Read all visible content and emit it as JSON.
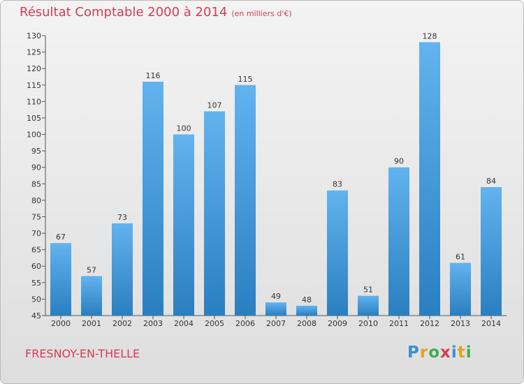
{
  "header": {
    "title": "Résultat Comptable 2000 à 2014",
    "subtitle": "(en milliers d'€)"
  },
  "footer": {
    "commune": "FRESNOY-EN-THELLE",
    "logo_text": "Proxiti",
    "logo_letters": [
      {
        "ch": "P",
        "color": "#3a8fd9"
      },
      {
        "ch": "r",
        "color": "#e8a020"
      },
      {
        "ch": "o",
        "color": "#3fae49"
      },
      {
        "ch": "x",
        "color": "#d43d57"
      },
      {
        "ch": "i",
        "color": "#3a8fd9"
      },
      {
        "ch": "t",
        "color": "#e8a020"
      },
      {
        "ch": "i",
        "color": "#3fae49"
      }
    ]
  },
  "colors": {
    "bar_top": "#62b3ee",
    "bar_bottom": "#2a7fc0",
    "accent": "#d43d57"
  },
  "chart_data": {
    "type": "bar",
    "title": "Résultat Comptable 2000 à 2014",
    "subtitle": "(en milliers d'€)",
    "categories": [
      "2000",
      "2001",
      "2002",
      "2003",
      "2004",
      "2005",
      "2006",
      "2007",
      "2008",
      "2009",
      "2010",
      "2011",
      "2012",
      "2013",
      "2014"
    ],
    "values": [
      67,
      57,
      73,
      116,
      100,
      107,
      115,
      49,
      48,
      83,
      51,
      90,
      128,
      61,
      84
    ],
    "ylim": [
      45,
      130
    ],
    "yticks": [
      45,
      50,
      55,
      60,
      65,
      70,
      75,
      80,
      85,
      90,
      95,
      100,
      105,
      110,
      115,
      120,
      125,
      130
    ],
    "grid": false,
    "xlabel": "",
    "ylabel": ""
  }
}
